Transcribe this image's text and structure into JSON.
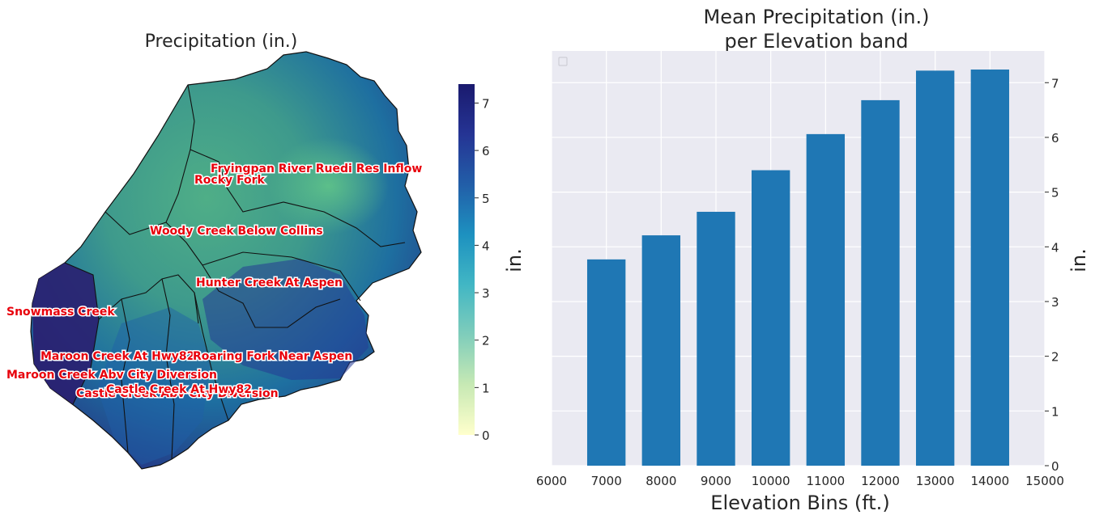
{
  "chart_data": [
    {
      "type": "heatmap",
      "title": "Precipitation (in.)",
      "colorbar": {
        "min": 0,
        "max": 7.4,
        "ticks": [
          "0",
          "1",
          "2",
          "3",
          "4",
          "5",
          "6",
          "7"
        ],
        "colormap": [
          "#ffffcc",
          "#c7e9b4",
          "#7fcdbb",
          "#41b6c4",
          "#1d91c0",
          "#225ea8",
          "#253494",
          "#1a1a6e"
        ]
      },
      "subbasin_labels": [
        "Fryingpan River Ruedi Res Inflow",
        "Rocky Fork",
        "Woody Creek Below Collins",
        "Hunter Creek At Aspen",
        "Snowmass Creek",
        "Maroon Creek At Hwy82",
        "Roaring Fork Near Aspen",
        "Maroon Creek Abv City Diversion",
        "Castle Creek Abv City Diversion",
        "Castle Creek At Hwy82"
      ]
    },
    {
      "type": "bar",
      "title": "Mean Precipitation (in.)",
      "subtitle": "per Elevation band",
      "xlabel": "Elevation Bins (ft.)",
      "ylabel": "in.",
      "x": [
        7000,
        8000,
        9000,
        10000,
        11000,
        12000,
        13000,
        14000
      ],
      "values": [
        3.77,
        4.21,
        4.64,
        5.4,
        6.06,
        6.68,
        7.22,
        7.24
      ],
      "bar_width": 700,
      "xlim": [
        6000,
        15000
      ],
      "ylim": [
        0,
        7.58
      ],
      "xticks": [
        "6000",
        "7000",
        "8000",
        "9000",
        "10000",
        "11000",
        "12000",
        "13000",
        "14000",
        "15000"
      ],
      "yticks": [
        "0",
        "1",
        "2",
        "3",
        "4",
        "5",
        "6",
        "7"
      ],
      "color": "#1f77b4",
      "background": "#eaeaf2",
      "grid": true,
      "legend_placement": "top-left"
    }
  ]
}
